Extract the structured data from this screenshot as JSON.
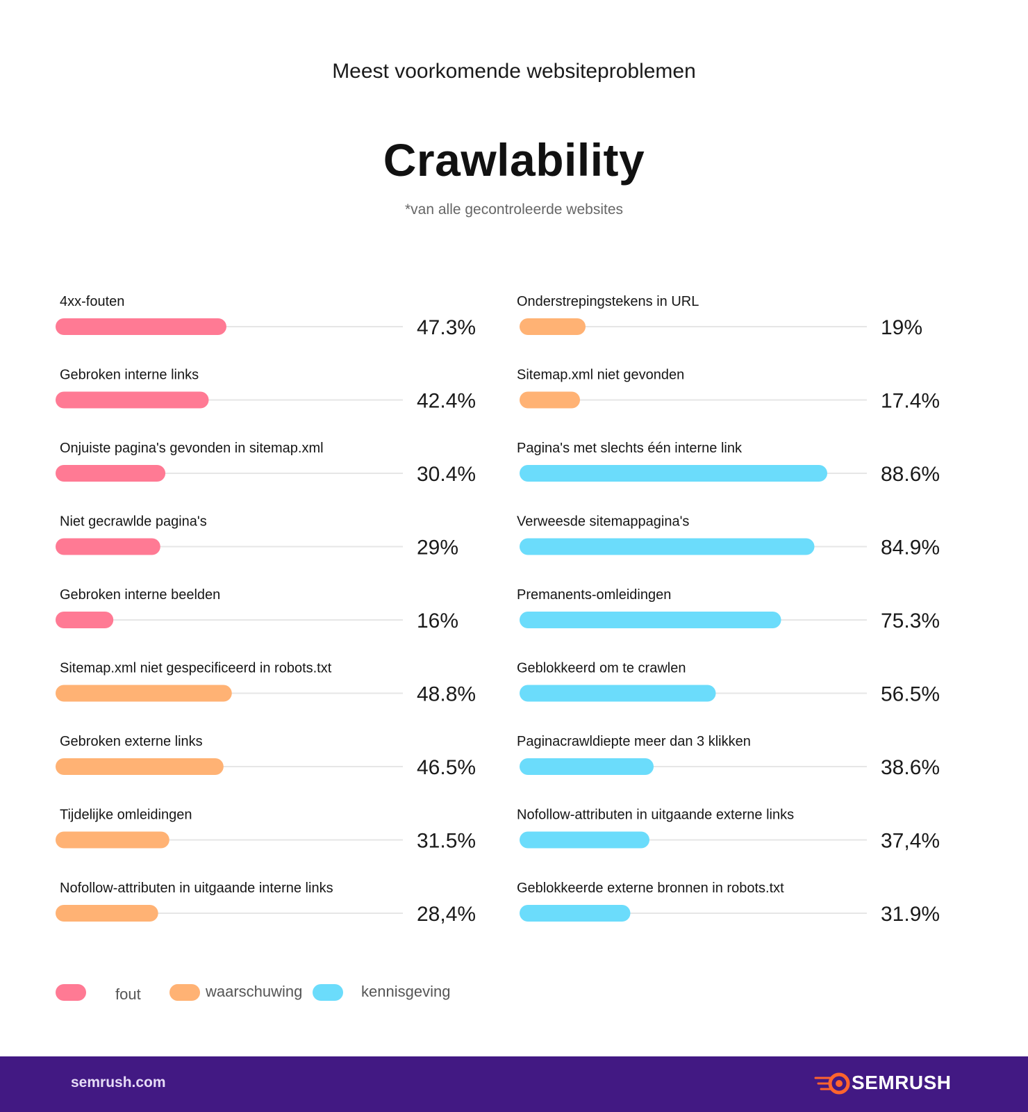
{
  "header": {
    "top_title": "Meest voorkomende websiteproblemen",
    "title": "Crawlability",
    "subtitle": "*van alle gecontroleerde websites"
  },
  "colors": {
    "fout": "#ff7a94",
    "waarschuwing": "#ffb274",
    "kennisgeving": "#6bdcfb",
    "track": "#e6e6e6",
    "footer_bg": "#421983",
    "brand_accent": "#ff642d"
  },
  "legend": {
    "items": [
      {
        "key": "fout",
        "label": "fout"
      },
      {
        "key": "waarschuwing",
        "label": "waarschuwing"
      },
      {
        "key": "kennisgeving",
        "label": "kennisgeving"
      }
    ]
  },
  "chart_data": {
    "type": "bar",
    "orientation": "horizontal",
    "xlim": [
      0,
      100
    ],
    "columns": [
      {
        "items": [
          {
            "label": "4xx-fouten",
            "value": 47.3,
            "display": "47.3%",
            "category": "fout"
          },
          {
            "label": "Gebroken interne links",
            "value": 42.4,
            "display": "42.4%",
            "category": "fout"
          },
          {
            "label": "Onjuiste pagina's gevonden in sitemap.xml",
            "value": 30.4,
            "display": "30.4%",
            "category": "fout"
          },
          {
            "label": "Niet gecrawlde pagina's",
            "value": 29,
            "display": "29%",
            "category": "fout"
          },
          {
            "label": "Gebroken interne beelden",
            "value": 16,
            "display": "16%",
            "category": "fout"
          },
          {
            "label": "Sitemap.xml niet gespecificeerd in robots.txt",
            "value": 48.8,
            "display": "48.8%",
            "category": "waarschuwing"
          },
          {
            "label": "Gebroken externe links",
            "value": 46.5,
            "display": "46.5%",
            "category": "waarschuwing"
          },
          {
            "label": "Tijdelijke omleidingen",
            "value": 31.5,
            "display": "31.5%",
            "category": "waarschuwing"
          },
          {
            "label": "Nofollow-attributen in uitgaande interne links",
            "value": 28.4,
            "display": "28,4%",
            "category": "waarschuwing"
          }
        ]
      },
      {
        "items": [
          {
            "label": "Onderstrepingstekens in URL",
            "value": 19,
            "display": "19%",
            "category": "waarschuwing"
          },
          {
            "label": "Sitemap.xml niet gevonden",
            "value": 17.4,
            "display": "17.4%",
            "category": "waarschuwing"
          },
          {
            "label": "Pagina's met slechts één interne link",
            "value": 88.6,
            "display": "88.6%",
            "category": "kennisgeving"
          },
          {
            "label": "Verweesde sitemappagina's",
            "value": 84.9,
            "display": "84.9%",
            "category": "kennisgeving"
          },
          {
            "label": "Premanents-omleidingen",
            "value": 75.3,
            "display": "75.3%",
            "category": "kennisgeving"
          },
          {
            "label": "Geblokkeerd om te crawlen",
            "value": 56.5,
            "display": "56.5%",
            "category": "kennisgeving"
          },
          {
            "label": "Paginacrawldiepte meer dan 3 klikken",
            "value": 38.6,
            "display": "38.6%",
            "category": "kennisgeving"
          },
          {
            "label": "Nofollow-attributen in uitgaande externe links",
            "value": 37.4,
            "display": "37,4%",
            "category": "kennisgeving"
          },
          {
            "label": "Geblokkeerde externe bronnen in robots.txt",
            "value": 31.9,
            "display": "31.9%",
            "category": "kennisgeving"
          }
        ]
      }
    ]
  },
  "footer": {
    "url": "semrush.com",
    "brand": "SEMRUSH",
    "brand_icon": "semrush-fireball-icon"
  }
}
